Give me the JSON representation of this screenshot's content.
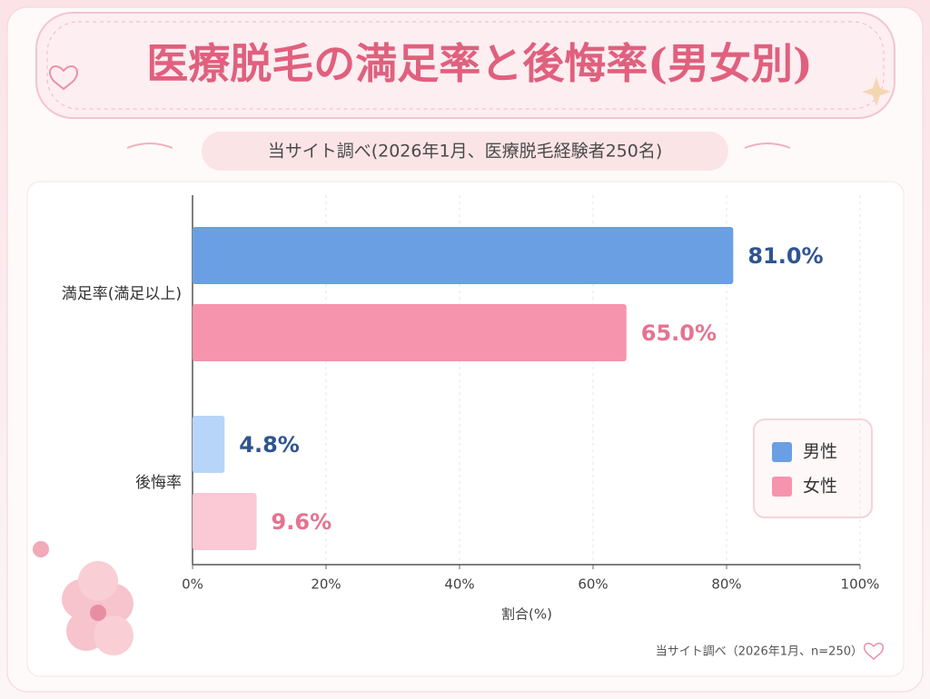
{
  "chart_data": {
    "type": "bar",
    "orientation": "horizontal",
    "title": "医療脱毛の満足率と後悔率(男女別)",
    "subtitle": "当サイト調べ(2026年1月、医療脱毛経験者250名)",
    "x_label": "割合(%)",
    "note": "当サイト調べ（2026年1月、n=250）",
    "categories": [
      "満足率(満足以上)",
      "後悔率"
    ],
    "series": [
      {
        "name": "男性",
        "color": "#6a9fe3",
        "point_colors": [
          "#6a9fe3",
          "#b7d5f8"
        ],
        "label_color": "#2f5590",
        "values": [
          81.0,
          4.8
        ],
        "value_labels": [
          "81.0%",
          "4.8%"
        ]
      },
      {
        "name": "女性",
        "color": "#f694ad",
        "point_colors": [
          "#f694ad",
          "#fbc8d5"
        ],
        "label_color": "#e57391",
        "values": [
          65.0,
          9.6
        ],
        "value_labels": [
          "65.0%",
          "9.6%"
        ]
      }
    ],
    "xlim": [
      0,
      100
    ],
    "xticks": [
      {
        "value": 0,
        "label": "0%"
      },
      {
        "value": 20,
        "label": "20%"
      },
      {
        "value": 40,
        "label": "40%"
      },
      {
        "value": 60,
        "label": "60%"
      },
      {
        "value": 80,
        "label": "80%"
      },
      {
        "value": 100,
        "label": "100%"
      }
    ],
    "grid": true,
    "legend_position": "right"
  }
}
